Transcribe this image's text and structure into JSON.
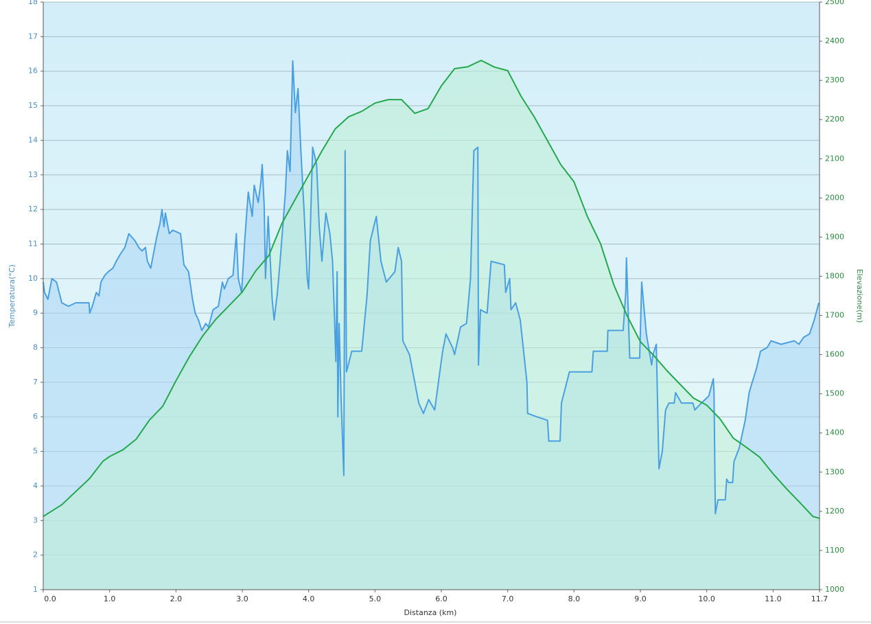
{
  "chart_data": {
    "type": "line",
    "xlabel": "Distanza  (km)",
    "ylabel": "Temperatura(°C)",
    "y2label": "Elevazione(m)",
    "xlim": [
      0,
      11.7
    ],
    "xticks": [
      {
        "value": 0,
        "label": "0.0"
      },
      {
        "value": 1,
        "label": "1.0"
      },
      {
        "value": 2,
        "label": "2.0"
      },
      {
        "value": 3,
        "label": "3.0"
      },
      {
        "value": 4,
        "label": "4.0"
      },
      {
        "value": 5,
        "label": "5.0"
      },
      {
        "value": 6,
        "label": "6.0"
      },
      {
        "value": 7,
        "label": "7.0"
      },
      {
        "value": 8,
        "label": "8.0"
      },
      {
        "value": 9,
        "label": "9.0"
      },
      {
        "value": 10,
        "label": "10.0"
      },
      {
        "value": 11,
        "label": "11.0"
      },
      11.7
    ],
    "ylim": [
      1,
      18
    ],
    "yticks": [
      1,
      2,
      3,
      4,
      5,
      6,
      7,
      8,
      9,
      10,
      11,
      12,
      13,
      14,
      15,
      16,
      17,
      18
    ],
    "y2lim": [
      1000,
      2500
    ],
    "y2ticks": [
      1000,
      1100,
      1200,
      1300,
      1400,
      1500,
      1600,
      1700,
      1800,
      1900,
      2000,
      2100,
      2200,
      2300,
      2400,
      2500
    ],
    "grid": true,
    "series": [
      {
        "color": "#4a9fe0",
        "fill": "#a9d5f5",
        "x": [
          0,
          0.02,
          0.07,
          0.13,
          0.2,
          0.24,
          0.28,
          0.38,
          0.49,
          0.69,
          0.7,
          0.74,
          0.8,
          0.84,
          0.87,
          0.93,
          0.98,
          1.05,
          1.1,
          1.16,
          1.23,
          1.29,
          1.38,
          1.44,
          1.49,
          1.54,
          1.57,
          1.62,
          1.71,
          1.76,
          1.79,
          1.82,
          1.84,
          1.9,
          1.95,
          2.07,
          2.12,
          2.19,
          2.25,
          2.29,
          2.34,
          2.39,
          2.45,
          2.49,
          2.56,
          2.64,
          2.7,
          2.73,
          2.79,
          2.86,
          2.91,
          2.94,
          2.99,
          3.04,
          3.09,
          3.15,
          3.18,
          3.24,
          3.28,
          3.3,
          3.33,
          3.35,
          3.39,
          3.45,
          3.48,
          3.53,
          3.57,
          3.61,
          3.65,
          3.68,
          3.72,
          3.76,
          3.8,
          3.84,
          3.88,
          3.93,
          3.98,
          4.0,
          4.06,
          4.12,
          4.16,
          4.2,
          4.26,
          4.32,
          4.36,
          4.39,
          4.41,
          4.43,
          4.44,
          4.46,
          4.49,
          4.53,
          4.55,
          4.57,
          4.65,
          4.8,
          4.88,
          4.93,
          5.02,
          5.09,
          5.17,
          5.3,
          5.35,
          5.4,
          5.42,
          5.52,
          5.6,
          5.66,
          5.73,
          5.81,
          5.9,
          6.02,
          6.07,
          6.17,
          6.2,
          6.29,
          6.38,
          6.44,
          6.49,
          6.55,
          6.56,
          6.59,
          6.69,
          6.75,
          6.95,
          6.97,
          7.03,
          7.05,
          7.12,
          7.19,
          7.29,
          7.3,
          7.44,
          7.6,
          7.62,
          7.79,
          7.81,
          7.93,
          8.27,
          8.29,
          8.5,
          8.51,
          8.74,
          8.78,
          8.79,
          8.84,
          8.99,
          9.02,
          9.09,
          9.17,
          9.19,
          9.24,
          9.28,
          9.33,
          9.38,
          9.43,
          9.51,
          9.53,
          9.62,
          9.79,
          9.82,
          9.92,
          10.03,
          10.1,
          10.11,
          10.13,
          10.17,
          10.28,
          10.3,
          10.33,
          10.39,
          10.41,
          10.49,
          10.58,
          10.64,
          10.67,
          10.75,
          10.81,
          10.91,
          10.97,
          11.12,
          11.32,
          11.39,
          11.46,
          11.55,
          11.62,
          11.69
        ],
        "values": [
          9.9,
          9.6,
          9.4,
          10.0,
          9.9,
          9.6,
          9.3,
          9.2,
          9.3,
          9.3,
          9.0,
          9.2,
          9.6,
          9.5,
          9.9,
          10.1,
          10.2,
          10.3,
          10.5,
          10.7,
          10.9,
          11.3,
          11.1,
          10.9,
          10.8,
          10.9,
          10.5,
          10.3,
          11.2,
          11.6,
          12.0,
          11.5,
          11.9,
          11.3,
          11.4,
          11.3,
          10.4,
          10.2,
          9.4,
          9.0,
          8.8,
          8.5,
          8.7,
          8.6,
          9.1,
          9.2,
          9.9,
          9.7,
          10.0,
          10.1,
          11.3,
          10.0,
          9.6,
          11.2,
          12.5,
          11.8,
          12.7,
          12.2,
          12.8,
          13.3,
          12.1,
          10.0,
          11.8,
          9.4,
          8.8,
          9.6,
          10.5,
          11.5,
          12.5,
          13.7,
          13.1,
          16.3,
          14.8,
          15.5,
          13.8,
          12.0,
          10.0,
          9.7,
          13.8,
          13.3,
          11.5,
          10.5,
          11.9,
          11.3,
          10.5,
          8.8,
          7.6,
          10.2,
          6.0,
          8.7,
          6.5,
          4.3,
          13.7,
          7.3,
          7.9,
          7.9,
          9.5,
          11.1,
          11.8,
          10.5,
          9.9,
          10.2,
          10.9,
          10.5,
          8.2,
          7.8,
          7.0,
          6.4,
          6.1,
          6.5,
          6.2,
          7.9,
          8.4,
          8.0,
          7.8,
          8.6,
          8.7,
          10.0,
          13.7,
          13.8,
          7.5,
          9.1,
          9.0,
          10.5,
          10.4,
          9.6,
          10.0,
          9.1,
          9.3,
          8.8,
          7.0,
          6.1,
          6.0,
          5.9,
          5.3,
          5.3,
          6.4,
          7.3,
          7.3,
          7.9,
          7.9,
          8.5,
          8.5,
          9.6,
          10.6,
          7.7,
          7.7,
          9.9,
          8.4,
          7.5,
          7.8,
          8.1,
          4.5,
          5.0,
          6.2,
          6.4,
          6.4,
          6.7,
          6.4,
          6.4,
          6.2,
          6.4,
          6.6,
          7.1,
          6.7,
          3.2,
          3.6,
          3.6,
          4.2,
          4.1,
          4.1,
          4.7,
          5.1,
          5.9,
          6.7,
          6.9,
          7.4,
          7.9,
          8.0,
          8.2,
          8.1,
          8.2,
          8.1,
          8.3,
          8.4,
          8.8,
          9.3
        ]
      },
      {
        "color": "#22a84a",
        "fill": "#bdeed5",
        "axis": "y2",
        "x": [
          0,
          0.28,
          0.5,
          0.7,
          0.9,
          1.0,
          1.2,
          1.4,
          1.6,
          1.8,
          2.0,
          2.2,
          2.4,
          2.6,
          2.8,
          3.0,
          3.2,
          3.4,
          3.6,
          3.8,
          4.0,
          4.2,
          4.4,
          4.6,
          4.8,
          5.0,
          5.2,
          5.4,
          5.6,
          5.8,
          6.0,
          6.2,
          6.4,
          6.6,
          6.8,
          7.0,
          7.2,
          7.4,
          7.6,
          7.8,
          8.0,
          8.2,
          8.4,
          8.6,
          8.8,
          9.0,
          9.2,
          9.4,
          9.6,
          9.8,
          10.0,
          10.2,
          10.4,
          10.6,
          10.8,
          11.0,
          11.2,
          11.4,
          11.6,
          11.7
        ],
        "values": [
          1187,
          1217,
          1252,
          1284,
          1328,
          1340,
          1357,
          1384,
          1433,
          1468,
          1533,
          1594,
          1647,
          1690,
          1725,
          1760,
          1813,
          1853,
          1936,
          1997,
          2058,
          2120,
          2176,
          2207,
          2221,
          2242,
          2251,
          2251,
          2216,
          2228,
          2286,
          2330,
          2335,
          2351,
          2334,
          2325,
          2260,
          2207,
          2146,
          2085,
          2041,
          1953,
          1883,
          1778,
          1699,
          1633,
          1598,
          1559,
          1524,
          1489,
          1471,
          1436,
          1387,
          1363,
          1338,
          1296,
          1258,
          1223,
          1187,
          1182
        ]
      }
    ]
  }
}
